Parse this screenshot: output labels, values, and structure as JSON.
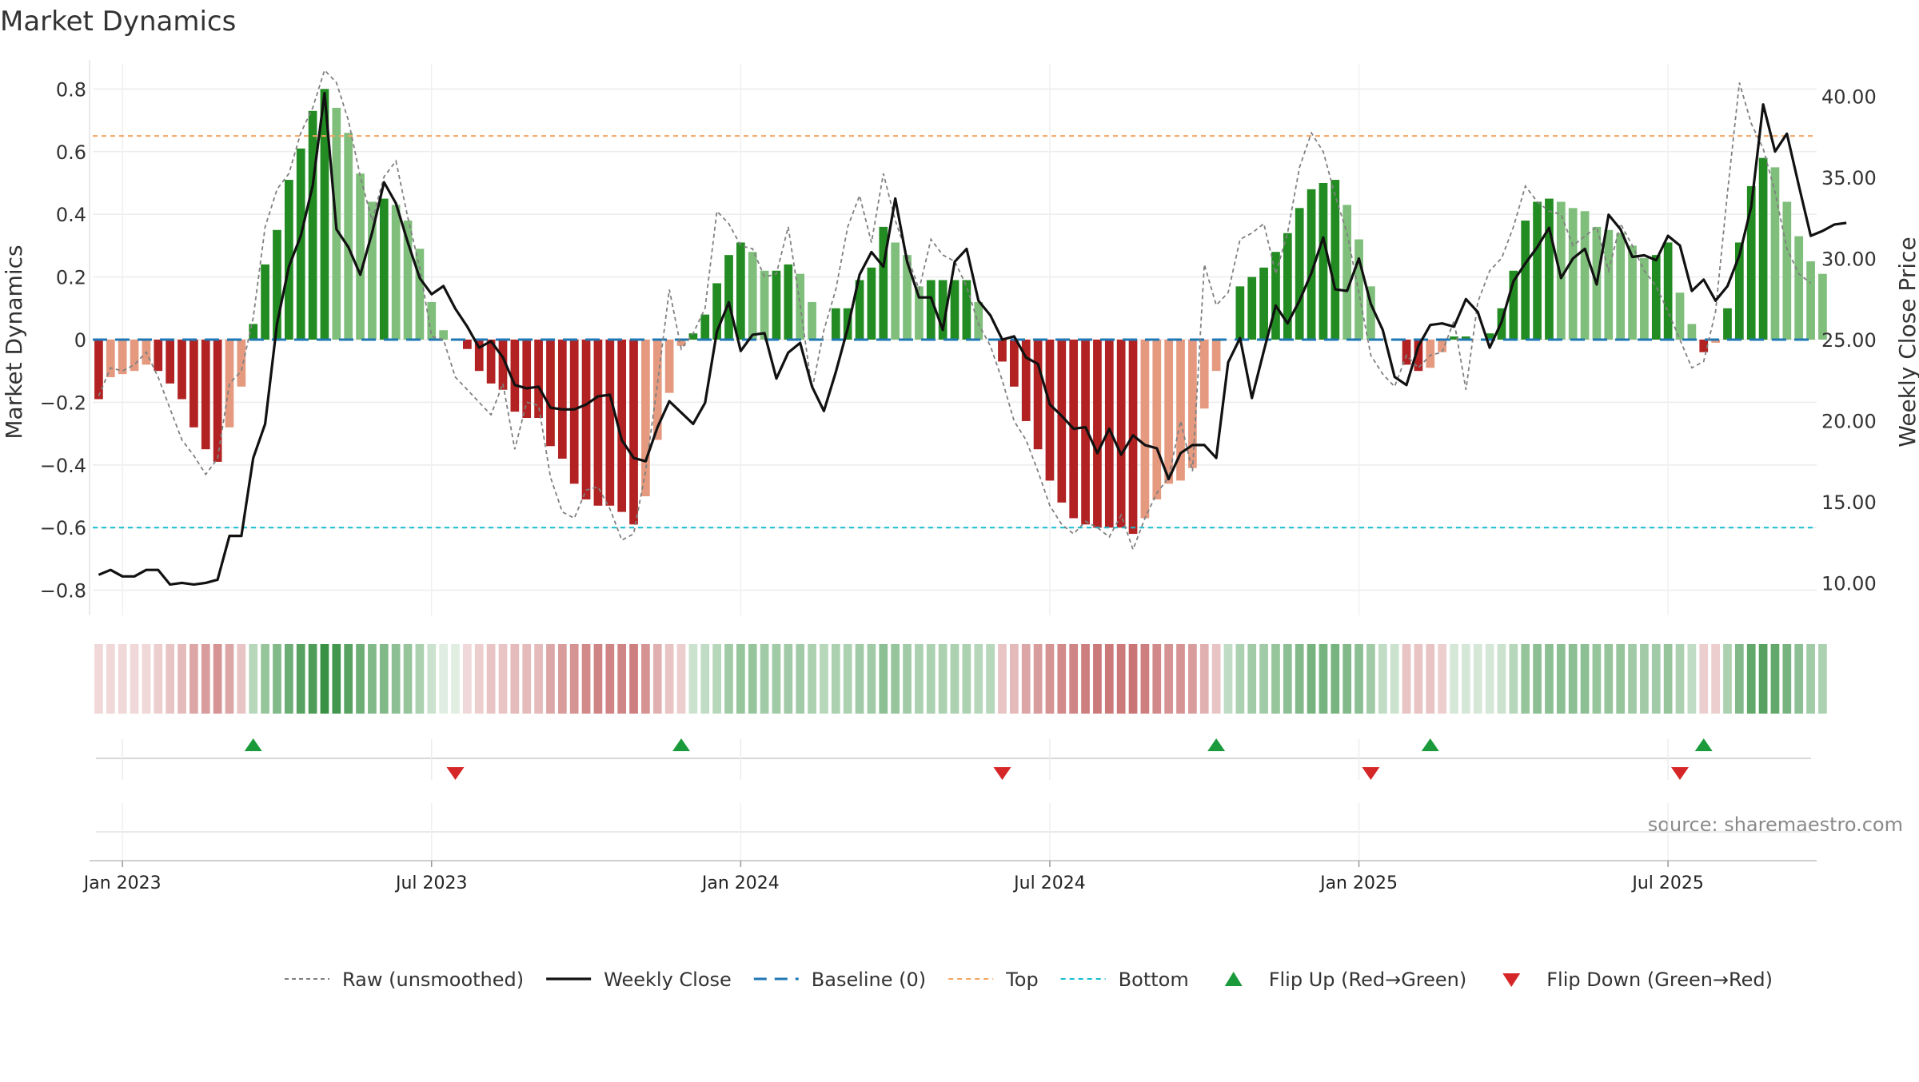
{
  "chart_data": {
    "type": "bar",
    "title": "Market Dynamics",
    "ylabel_left": "Market Dynamics",
    "ylabel_right": "Weekly Close Price",
    "ylim_left": [
      -0.88,
      0.88
    ],
    "ylim_right": [
      8.0,
      42.0
    ],
    "yticks_left": [
      {
        "v": 0.8,
        "label": "0.8"
      },
      {
        "v": 0.6,
        "label": "0.6"
      },
      {
        "v": 0.4,
        "label": "0.4"
      },
      {
        "v": 0.2,
        "label": "0.2"
      },
      {
        "v": 0,
        "label": "0"
      },
      {
        "v": -0.2,
        "label": "−0.2"
      },
      {
        "v": -0.4,
        "label": "−0.4"
      },
      {
        "v": -0.6,
        "label": "−0.6"
      },
      {
        "v": -0.8,
        "label": "−0.8"
      }
    ],
    "yticks_right": [
      {
        "v": 40,
        "label": "40.00"
      },
      {
        "v": 35,
        "label": "35.00"
      },
      {
        "v": 30,
        "label": "30.00"
      },
      {
        "v": 25,
        "label": "25.00"
      },
      {
        "v": 20,
        "label": "20.00"
      },
      {
        "v": 15,
        "label": "15.00"
      },
      {
        "v": 10,
        "label": "10.00"
      }
    ],
    "xticks": [
      {
        "week": 2,
        "label": "Jan 2023"
      },
      {
        "week": 28,
        "label": "Jul 2023"
      },
      {
        "week": 54,
        "label": "Jan 2024"
      },
      {
        "week": 80,
        "label": "Jul 2024"
      },
      {
        "week": 106,
        "label": "Jan 2025"
      },
      {
        "week": 132,
        "label": "Jul 2025"
      }
    ],
    "top_level": 0.65,
    "bottom_level": -0.6,
    "baseline": 0,
    "week_count": 145,
    "market_dynamics": [
      -0.19,
      -0.12,
      -0.11,
      -0.1,
      -0.08,
      -0.1,
      -0.14,
      -0.19,
      -0.28,
      -0.35,
      -0.39,
      -0.28,
      -0.15,
      0.05,
      0.24,
      0.35,
      0.51,
      0.61,
      0.73,
      0.8,
      0.74,
      0.66,
      0.53,
      0.44,
      0.45,
      0.43,
      0.38,
      0.29,
      0.12,
      0.03,
      0.0,
      -0.03,
      -0.1,
      -0.14,
      -0.16,
      -0.23,
      -0.25,
      -0.25,
      -0.34,
      -0.38,
      -0.46,
      -0.51,
      -0.53,
      -0.53,
      -0.55,
      -0.59,
      -0.5,
      -0.32,
      -0.17,
      -0.02,
      0.02,
      0.08,
      0.18,
      0.27,
      0.31,
      0.28,
      0.22,
      0.22,
      0.24,
      0.21,
      0.12,
      0.0,
      0.1,
      0.1,
      0.19,
      0.23,
      0.36,
      0.31,
      0.27,
      0.17,
      0.19,
      0.19,
      0.19,
      0.19,
      0.12,
      0.0,
      -0.07,
      -0.15,
      -0.26,
      -0.35,
      -0.45,
      -0.52,
      -0.57,
      -0.59,
      -0.6,
      -0.6,
      -0.6,
      -0.62,
      -0.57,
      -0.51,
      -0.46,
      -0.45,
      -0.41,
      -0.22,
      -0.1,
      0.0,
      0.17,
      0.2,
      0.23,
      0.28,
      0.34,
      0.42,
      0.48,
      0.5,
      0.51,
      0.43,
      0.32,
      0.17,
      0.0,
      0.0,
      -0.08,
      -0.1,
      -0.09,
      -0.04,
      0.01,
      0.01,
      0.0,
      0.02,
      0.1,
      0.22,
      0.38,
      0.44,
      0.45,
      0.44,
      0.42,
      0.41,
      0.36,
      0.35,
      0.34,
      0.3,
      0.26,
      0.27,
      0.31,
      0.15,
      0.05,
      -0.04,
      -0.01,
      0.1,
      0.31,
      0.49,
      0.58,
      0.55,
      0.44,
      0.33,
      0.25,
      0.21
    ],
    "raw_unsmoothed": [
      -0.18,
      -0.09,
      -0.1,
      -0.08,
      -0.04,
      -0.12,
      -0.22,
      -0.32,
      -0.37,
      -0.43,
      -0.38,
      -0.14,
      -0.1,
      0.07,
      0.36,
      0.48,
      0.53,
      0.66,
      0.74,
      0.86,
      0.82,
      0.7,
      0.52,
      0.38,
      0.52,
      0.57,
      0.39,
      0.23,
      0.01,
      0.0,
      -0.12,
      -0.16,
      -0.2,
      -0.24,
      -0.14,
      -0.35,
      -0.2,
      -0.21,
      -0.44,
      -0.55,
      -0.57,
      -0.48,
      -0.47,
      -0.54,
      -0.64,
      -0.62,
      -0.42,
      -0.14,
      0.16,
      -0.03,
      0.02,
      0.1,
      0.41,
      0.37,
      0.3,
      0.29,
      0.2,
      0.21,
      0.36,
      0.11,
      -0.16,
      0.03,
      0.16,
      0.36,
      0.46,
      0.31,
      0.53,
      0.38,
      0.27,
      0.16,
      0.32,
      0.27,
      0.25,
      0.17,
      0.05,
      -0.02,
      -0.13,
      -0.26,
      -0.32,
      -0.42,
      -0.53,
      -0.59,
      -0.62,
      -0.58,
      -0.6,
      -0.63,
      -0.56,
      -0.67,
      -0.57,
      -0.49,
      -0.44,
      -0.26,
      -0.42,
      0.24,
      0.11,
      0.15,
      0.32,
      0.34,
      0.37,
      0.21,
      0.34,
      0.55,
      0.66,
      0.6,
      0.46,
      0.34,
      0.15,
      -0.05,
      -0.11,
      -0.15,
      -0.05,
      -0.09,
      -0.05,
      -0.04,
      0.06,
      -0.16,
      0.12,
      0.22,
      0.26,
      0.36,
      0.49,
      0.44,
      0.41,
      0.4,
      0.3,
      0.33,
      0.36,
      0.22,
      0.37,
      0.3,
      0.22,
      0.17,
      0.09,
      0.0,
      -0.09,
      -0.07,
      0.09,
      0.47,
      0.82,
      0.69,
      0.61,
      0.47,
      0.29,
      0.21,
      0.18
    ],
    "weekly_close": [
      10.5,
      10.8,
      10.4,
      10.4,
      10.8,
      10.8,
      9.9,
      10.0,
      9.9,
      10.0,
      10.2,
      12.9,
      12.9,
      17.7,
      19.8,
      26.0,
      29.5,
      31.4,
      34.5,
      40.2,
      31.8,
      30.7,
      29.0,
      31.6,
      34.7,
      33.4,
      31.0,
      28.8,
      27.8,
      28.3,
      26.9,
      25.8,
      24.5,
      24.9,
      23.9,
      22.2,
      22.0,
      22.1,
      20.8,
      20.7,
      20.7,
      21.0,
      21.5,
      21.6,
      18.8,
      17.7,
      17.5,
      19.6,
      21.2,
      20.5,
      19.8,
      21.1,
      25.5,
      27.3,
      24.3,
      25.3,
      25.4,
      22.6,
      24.2,
      24.8,
      22.1,
      20.6,
      23.0,
      25.7,
      29.0,
      30.4,
      29.5,
      33.7,
      29.8,
      27.6,
      27.6,
      25.6,
      29.8,
      30.6,
      27.4,
      26.5,
      25.0,
      25.2,
      23.9,
      23.5,
      21.0,
      20.3,
      19.5,
      19.6,
      18.0,
      19.5,
      17.9,
      19.1,
      18.5,
      18.3,
      16.4,
      18.0,
      18.5,
      18.5,
      17.7,
      23.6,
      25.1,
      21.4,
      24.3,
      27.1,
      26.0,
      27.4,
      29.1,
      31.3,
      28.1,
      28.0,
      30.0,
      27.2,
      25.6,
      22.7,
      22.2,
      24.6,
      25.9,
      26.0,
      25.8,
      27.5,
      26.7,
      24.5,
      26.1,
      28.6,
      29.7,
      30.7,
      31.9,
      28.8,
      30.0,
      30.6,
      28.4,
      32.7,
      31.8,
      30.1,
      30.2,
      29.9,
      31.4,
      30.8,
      28.0,
      28.7,
      27.4,
      28.3,
      30.2,
      33.2,
      39.5,
      36.6,
      37.7,
      34.5,
      31.4,
      31.7,
      32.1,
      32.2
    ],
    "strip_alpha": [
      0.2,
      0.2,
      0.2,
      0.2,
      0.2,
      0.25,
      0.3,
      0.35,
      0.45,
      0.5,
      0.55,
      0.45,
      0.3,
      0.35,
      0.5,
      0.6,
      0.7,
      0.8,
      0.85,
      0.95,
      0.9,
      0.8,
      0.7,
      0.6,
      0.6,
      0.55,
      0.5,
      0.4,
      0.25,
      0.15,
      0.15,
      0.2,
      0.25,
      0.3,
      0.3,
      0.35,
      0.35,
      0.35,
      0.45,
      0.5,
      0.55,
      0.6,
      0.62,
      0.62,
      0.62,
      0.65,
      0.55,
      0.4,
      0.3,
      0.25,
      0.25,
      0.3,
      0.35,
      0.45,
      0.5,
      0.5,
      0.45,
      0.45,
      0.45,
      0.45,
      0.4,
      0.35,
      0.4,
      0.4,
      0.45,
      0.45,
      0.55,
      0.5,
      0.45,
      0.4,
      0.4,
      0.4,
      0.4,
      0.4,
      0.35,
      0.35,
      0.3,
      0.35,
      0.45,
      0.5,
      0.55,
      0.6,
      0.62,
      0.65,
      0.68,
      0.68,
      0.68,
      0.7,
      0.65,
      0.6,
      0.55,
      0.55,
      0.5,
      0.4,
      0.3,
      0.3,
      0.4,
      0.45,
      0.45,
      0.5,
      0.55,
      0.6,
      0.65,
      0.65,
      0.65,
      0.6,
      0.55,
      0.45,
      0.3,
      0.25,
      0.3,
      0.3,
      0.3,
      0.25,
      0.2,
      0.2,
      0.2,
      0.2,
      0.25,
      0.35,
      0.5,
      0.55,
      0.55,
      0.55,
      0.55,
      0.55,
      0.5,
      0.5,
      0.5,
      0.45,
      0.45,
      0.45,
      0.5,
      0.4,
      0.3,
      0.25,
      0.25,
      0.4,
      0.6,
      0.75,
      0.8,
      0.75,
      0.65,
      0.55,
      0.45,
      0.4
    ],
    "flip_up_weeks": [
      13,
      49,
      94,
      112,
      135
    ],
    "flip_down_weeks": [
      30,
      76,
      107,
      133
    ],
    "colors": {
      "strong_green": "#228b22",
      "light_green": "#7fbf7b",
      "strong_red": "#b22222",
      "light_red": "#e59a80",
      "raw_line": "#808080",
      "close_line": "#111111",
      "baseline": "#1f77b4",
      "top": "#f4a460",
      "bottom": "#17becf",
      "flip_up": "#1a9a3a",
      "flip_down": "#d62728",
      "strip_green": "#2e8b3a",
      "strip_red": "#b23a3a"
    },
    "legend": [
      {
        "key": "raw",
        "label": "Raw (unsmoothed)"
      },
      {
        "key": "close",
        "label": "Weekly Close"
      },
      {
        "key": "baseline",
        "label": "Baseline (0)"
      },
      {
        "key": "top",
        "label": "Top"
      },
      {
        "key": "bottom",
        "label": "Bottom"
      },
      {
        "key": "flip_up",
        "label": "Flip Up (Red→Green)"
      },
      {
        "key": "flip_down",
        "label": "Flip Down (Green→Red)"
      }
    ],
    "source": "source: sharemaestro.com"
  }
}
